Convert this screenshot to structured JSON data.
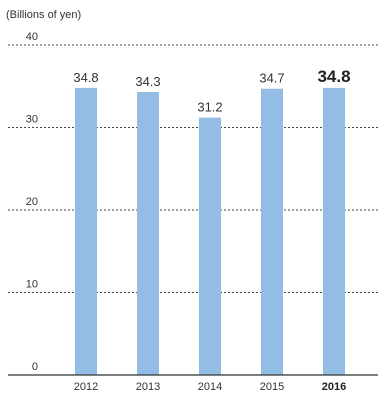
{
  "chart_data": {
    "type": "bar",
    "unit_label": "(Billions of yen)",
    "categories": [
      "2012",
      "2013",
      "2014",
      "2015",
      "2016"
    ],
    "values": [
      34.8,
      34.3,
      31.2,
      34.7,
      34.8
    ],
    "value_labels": [
      "34.8",
      "34.3",
      "31.2",
      "34.7",
      "34.8"
    ],
    "emphasized_category": "2016",
    "ylim": [
      0,
      40
    ],
    "yticks": [
      0,
      10,
      20,
      30,
      40
    ],
    "grid": true,
    "grid_style": "dotted",
    "legend": "none",
    "xlabel": "",
    "ylabel": "",
    "colors": {
      "bar": "#93bde4",
      "grid": "#444444",
      "axis": "#333333",
      "text": "#333333"
    }
  }
}
